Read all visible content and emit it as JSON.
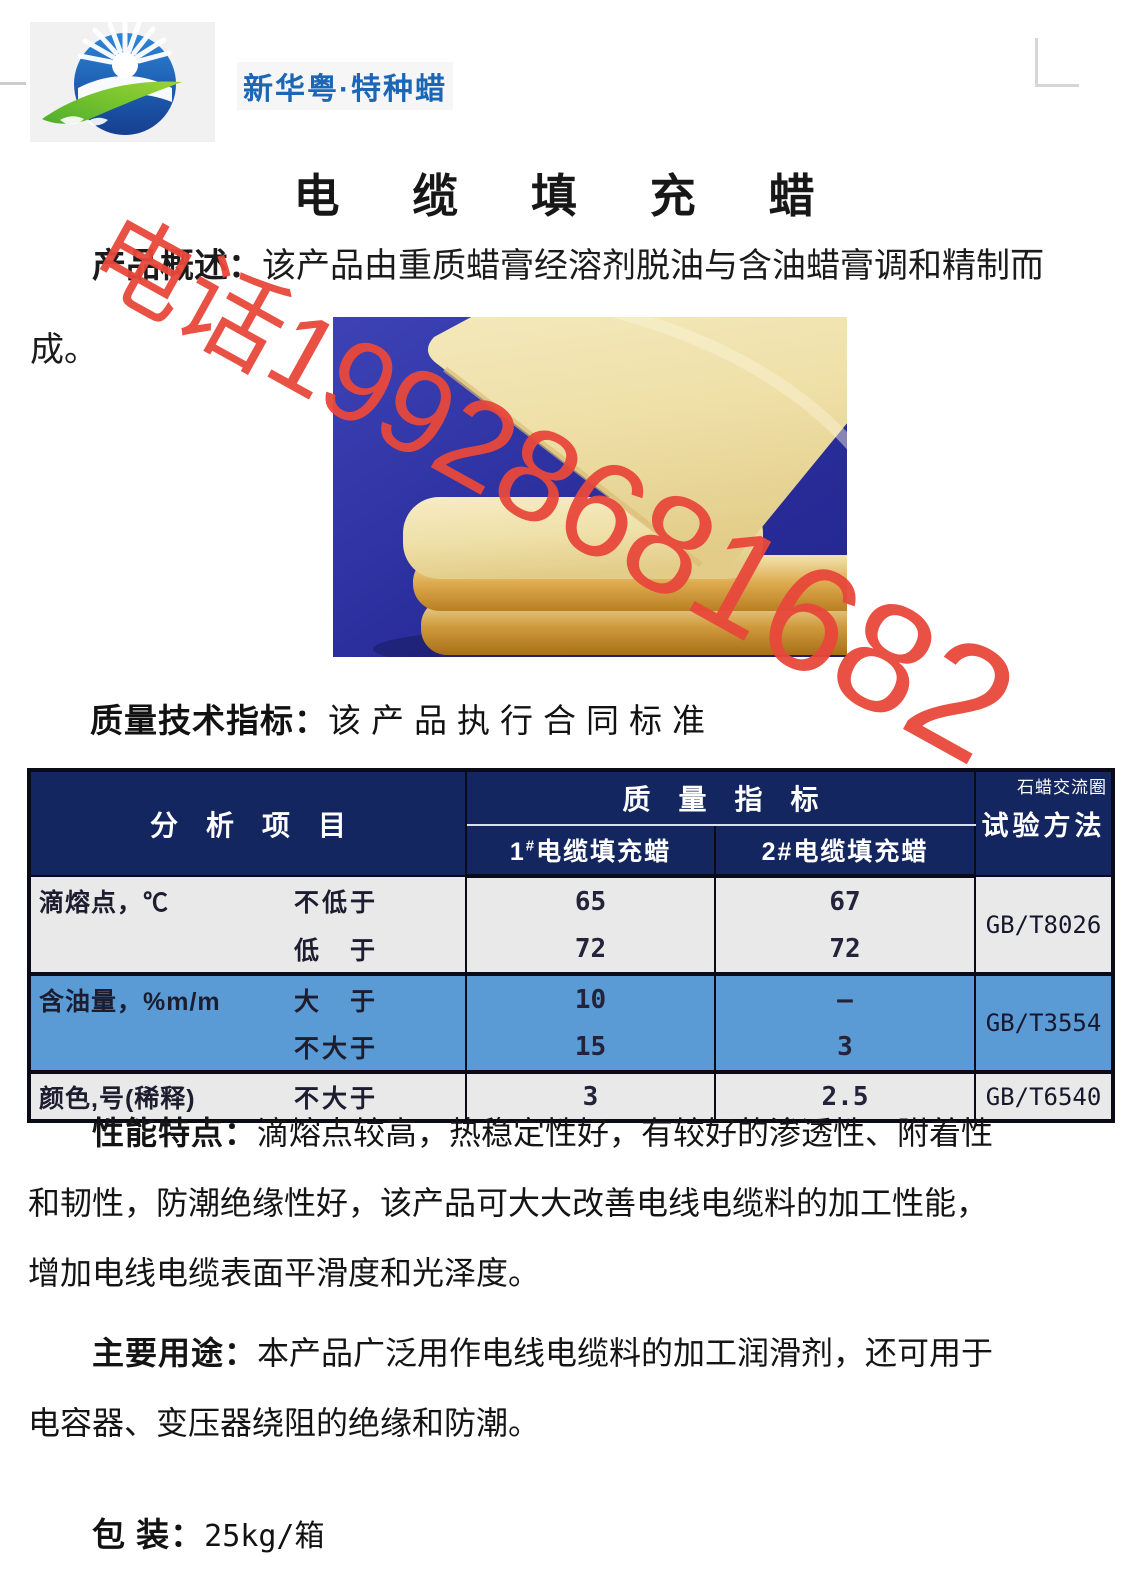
{
  "brand": {
    "name": "新华粤·特种蜡"
  },
  "page": {
    "title": "电 缆 填 充 蜡"
  },
  "watermark": {
    "text": "电话19928681682",
    "color": "#e8483b"
  },
  "overview": {
    "label": "产品概述：",
    "line1": "该产品由重质蜡膏经溶剂脱油与含油蜡膏调和精制而",
    "line2": "成。"
  },
  "quality_heading": {
    "label": "质量技术指标：",
    "text": "该产品执行合同标准"
  },
  "table": {
    "corner_note": "石蜡交流圈",
    "header": {
      "analysis": "分　析　项　目",
      "quality": "质　量　指　标",
      "method": "试验方法",
      "grade1_num": "1",
      "grade1_sup": "#",
      "grade1_name": "电缆填充蜡",
      "grade2": "2#电缆填充蜡"
    },
    "rows": [
      {
        "item": "滴熔点，℃",
        "qual": "不低于",
        "v1": "65",
        "v2": "67",
        "method": "GB/T8026"
      },
      {
        "item": "",
        "qual": "低　于",
        "v1": "72",
        "v2": "72",
        "method": ""
      },
      {
        "item": "含油量，%m/m",
        "qual": "大　于",
        "v1": "10",
        "v2": "–",
        "method": "GB/T3554"
      },
      {
        "item": "",
        "qual": "不大于",
        "v1": "15",
        "v2": "3",
        "method": ""
      },
      {
        "item": "颜色,号(稀释)",
        "qual": "不大于",
        "v1": "3",
        "v2": "2.5",
        "method": "GB/T6540"
      }
    ]
  },
  "performance": {
    "label": "性能特点：",
    "lines": [
      "滴熔点较高，热稳定性好，有较好的渗透性、附着性",
      "和韧性，防潮绝缘性好，该产品可大大改善电线电缆料的加工性能，",
      "增加电线电缆表面平滑度和光泽度。"
    ]
  },
  "usage": {
    "label": "主要用途：",
    "lines": [
      "本产品广泛用作电线电缆料的加工润滑剂，还可用于",
      "电容器、变压器绕阻的绝缘和防潮。"
    ]
  },
  "packaging": {
    "label": "包 装：",
    "value": "25kg/箱"
  },
  "colors": {
    "header_navy": "#14265f",
    "row_blue": "#5b9bd5",
    "row_gray": "#e9e9e9",
    "watermark_red": "#e8483b",
    "brand_blue": "#1b66b5",
    "photo_blue": "#2b2f9e"
  }
}
